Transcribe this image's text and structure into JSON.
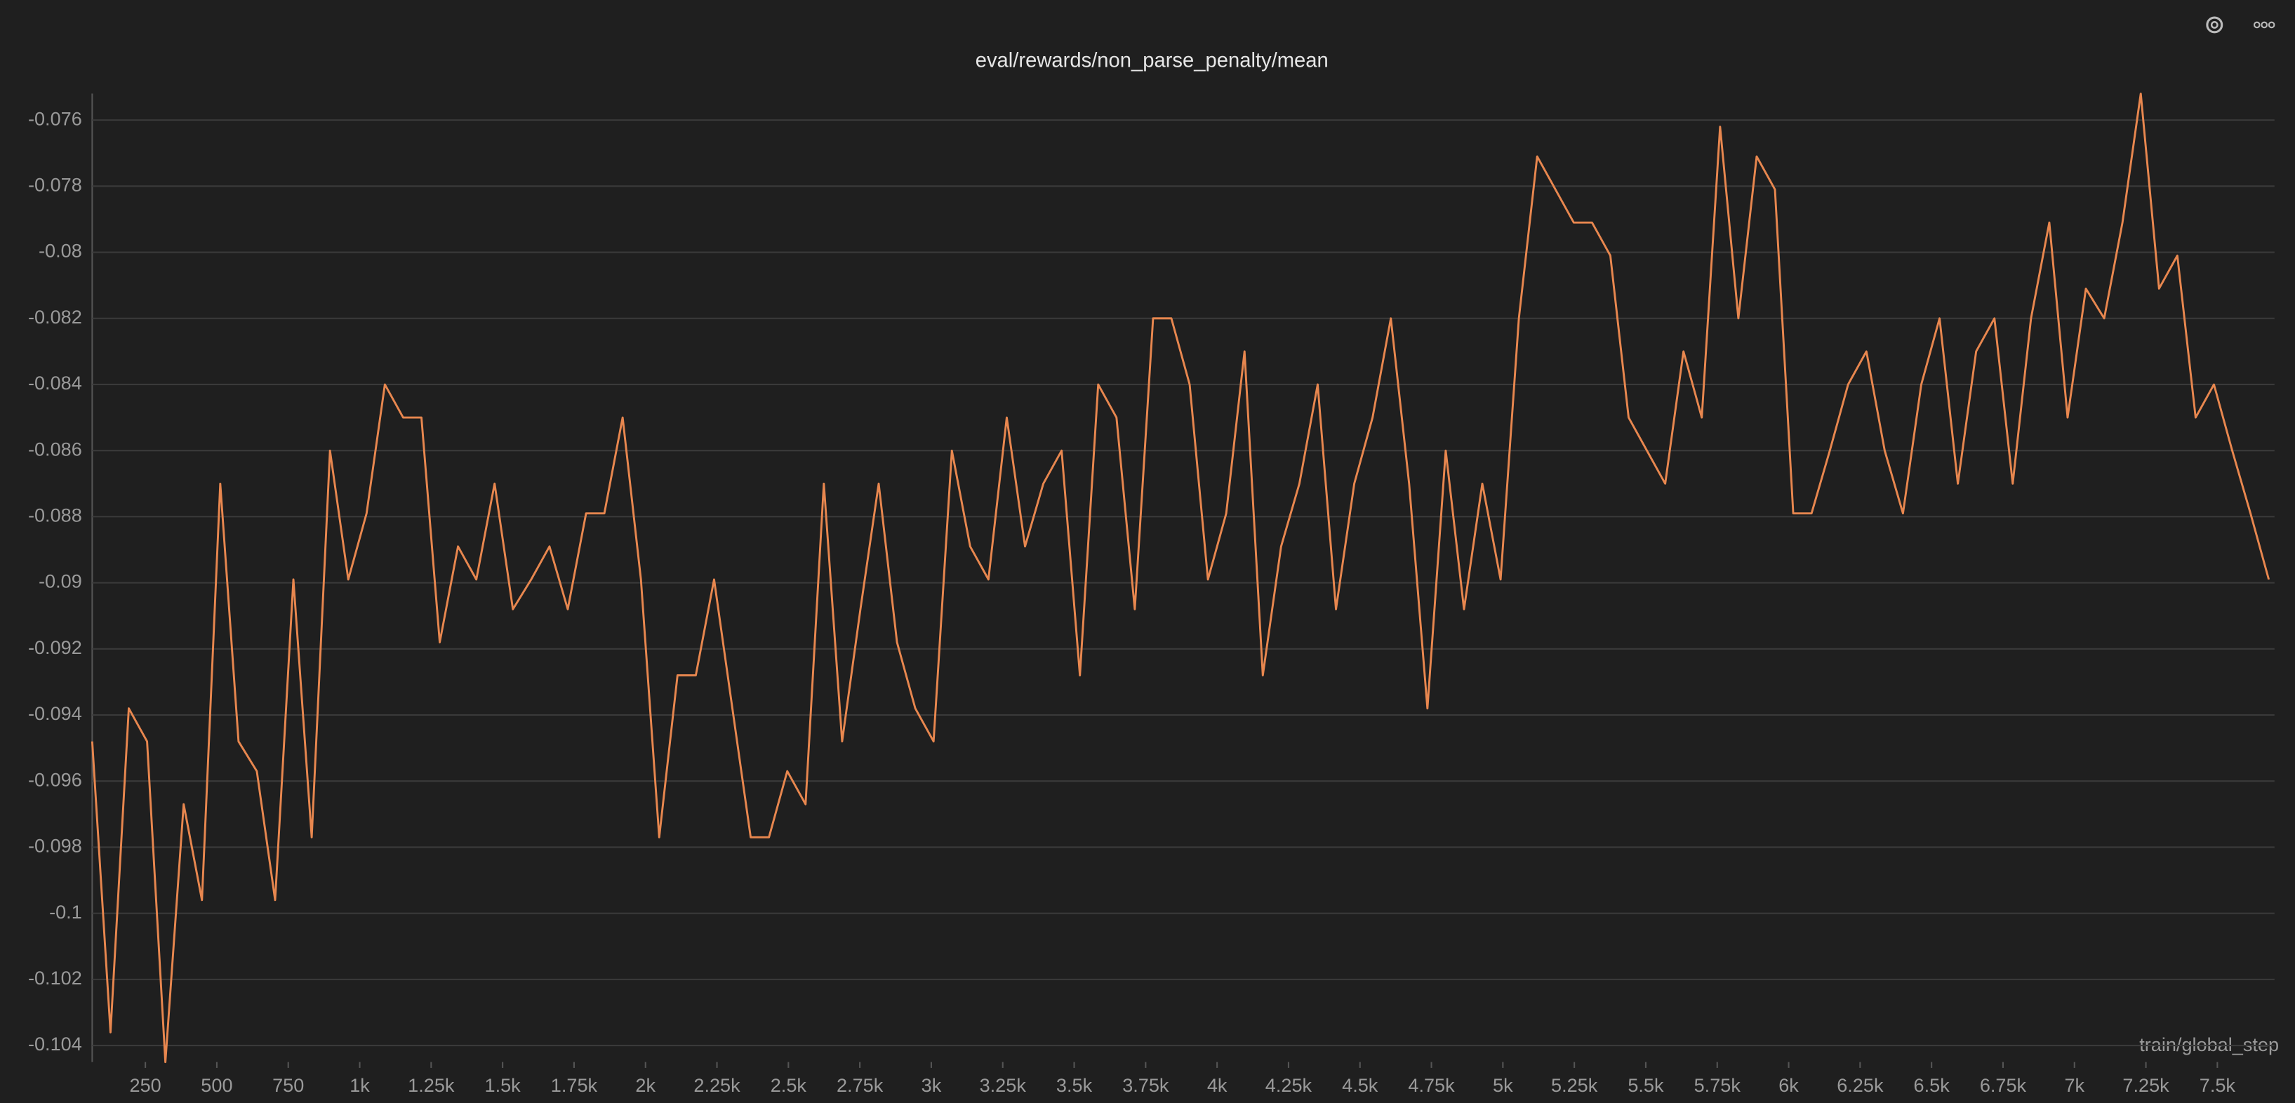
{
  "chart_data": {
    "type": "line",
    "title": "eval/rewards/non_parse_penalty/mean",
    "x_label": "train/global_step",
    "x": [
      64,
      128,
      192,
      256,
      320,
      384,
      448,
      512,
      576,
      640,
      704,
      768,
      832,
      896,
      960,
      1024,
      1088,
      1152,
      1216,
      1280,
      1344,
      1408,
      1472,
      1536,
      1600,
      1664,
      1728,
      1792,
      1856,
      1920,
      1984,
      2048,
      2112,
      2176,
      2240,
      2304,
      2368,
      2432,
      2496,
      2560,
      2624,
      2688,
      2752,
      2816,
      2880,
      2944,
      3008,
      3072,
      3136,
      3200,
      3264,
      3328,
      3392,
      3456,
      3520,
      3584,
      3648,
      3712,
      3776,
      3840,
      3904,
      3968,
      4032,
      4096,
      4160,
      4224,
      4288,
      4352,
      4416,
      4480,
      4544,
      4608,
      4672,
      4736,
      4800,
      4864,
      4928,
      4992,
      5056,
      5120,
      5184,
      5248,
      5312,
      5376,
      5440,
      5504,
      5568,
      5632,
      5696,
      5760,
      5824,
      5888,
      5952,
      6016,
      6080,
      6144,
      6208,
      6272,
      6336,
      6400,
      6464,
      6528,
      6592,
      6656,
      6720,
      6784,
      6848,
      6912,
      6976,
      7040,
      7104,
      7168,
      7232,
      7296,
      7360,
      7424,
      7488,
      7552,
      7616,
      7680
    ],
    "values": [
      -0.0948,
      -0.1036,
      -0.0938,
      -0.0948,
      -0.1045,
      -0.0967,
      -0.0996,
      -0.087,
      -0.0948,
      -0.0957,
      -0.0996,
      -0.0899,
      -0.0977,
      -0.086,
      -0.0899,
      -0.0879,
      -0.084,
      -0.085,
      -0.085,
      -0.0918,
      -0.0889,
      -0.0899,
      -0.087,
      -0.0908,
      -0.0899,
      -0.0889,
      -0.0908,
      -0.0879,
      -0.0879,
      -0.085,
      -0.0899,
      -0.0977,
      -0.0928,
      -0.0928,
      -0.0899,
      -0.0938,
      -0.0977,
      -0.0977,
      -0.0957,
      -0.0967,
      -0.087,
      -0.0948,
      -0.0908,
      -0.087,
      -0.0918,
      -0.0938,
      -0.0948,
      -0.086,
      -0.0889,
      -0.0899,
      -0.085,
      -0.0889,
      -0.087,
      -0.086,
      -0.0928,
      -0.084,
      -0.085,
      -0.0908,
      -0.082,
      -0.082,
      -0.084,
      -0.0899,
      -0.0879,
      -0.083,
      -0.0928,
      -0.0889,
      -0.087,
      -0.084,
      -0.0908,
      -0.087,
      -0.085,
      -0.082,
      -0.087,
      -0.0938,
      -0.086,
      -0.0908,
      -0.087,
      -0.0899,
      -0.082,
      -0.0771,
      -0.0781,
      -0.0791,
      -0.0791,
      -0.0801,
      -0.085,
      -0.086,
      -0.087,
      -0.083,
      -0.085,
      -0.0762,
      -0.082,
      -0.0771,
      -0.0781,
      -0.0879,
      -0.0879,
      -0.086,
      -0.084,
      -0.083,
      -0.086,
      -0.0879,
      -0.084,
      -0.082,
      -0.087,
      -0.083,
      -0.082,
      -0.087,
      -0.082,
      -0.0791,
      -0.085,
      -0.0811,
      -0.082,
      -0.0791,
      -0.0752,
      -0.0811,
      -0.0801,
      -0.085,
      -0.084,
      -0.086,
      -0.0879,
      -0.0899
    ],
    "color": "#e8874f",
    "xlim": [
      64,
      7700
    ],
    "xticks": [
      250,
      500,
      750,
      {
        "value": 1000,
        "label": "1k"
      },
      {
        "value": 1250,
        "label": "1.25k"
      },
      {
        "value": 1500,
        "label": "1.5k"
      },
      {
        "value": 1750,
        "label": "1.75k"
      },
      {
        "value": 2000,
        "label": "2k"
      },
      {
        "value": 2250,
        "label": "2.25k"
      },
      {
        "value": 2500,
        "label": "2.5k"
      },
      {
        "value": 2750,
        "label": "2.75k"
      },
      {
        "value": 3000,
        "label": "3k"
      },
      {
        "value": 3250,
        "label": "3.25k"
      },
      {
        "value": 3500,
        "label": "3.5k"
      },
      {
        "value": 3750,
        "label": "3.75k"
      },
      {
        "value": 4000,
        "label": "4k"
      },
      {
        "value": 4250,
        "label": "4.25k"
      },
      {
        "value": 4500,
        "label": "4.5k"
      },
      {
        "value": 4750,
        "label": "4.75k"
      },
      {
        "value": 5000,
        "label": "5k"
      },
      {
        "value": 5250,
        "label": "5.25k"
      },
      {
        "value": 5500,
        "label": "5.5k"
      },
      {
        "value": 5750,
        "label": "5.75k"
      },
      {
        "value": 6000,
        "label": "6k"
      },
      {
        "value": 6250,
        "label": "6.25k"
      },
      {
        "value": 6500,
        "label": "6.5k"
      },
      {
        "value": 6750,
        "label": "6.75k"
      },
      {
        "value": 7000,
        "label": "7k"
      },
      {
        "value": 7250,
        "label": "7.25k"
      },
      {
        "value": 7500,
        "label": "7.5k"
      }
    ],
    "ylim": [
      -0.1045,
      -0.0752
    ],
    "yticks": [
      -0.076,
      -0.078,
      -0.08,
      -0.082,
      -0.084,
      -0.086,
      -0.088,
      -0.09,
      -0.092,
      -0.094,
      -0.096,
      -0.098,
      -0.1,
      -0.102,
      -0.104
    ],
    "grid": true
  }
}
